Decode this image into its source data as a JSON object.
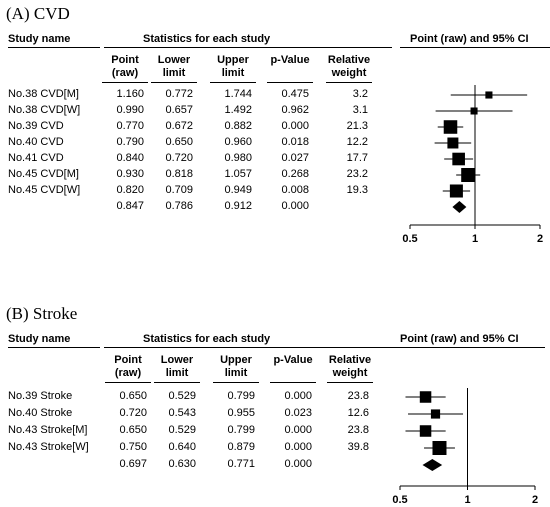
{
  "chart_data": [
    {
      "type": "forest",
      "title": "(A) CVD",
      "header_study": "Study name",
      "header_stats": "Statistics for each study",
      "header_plot": "Point (raw) and 95% CI",
      "columns": [
        "Point (raw)",
        "Lower limit",
        "Upper limit",
        "p-Value",
        "Relative weight"
      ],
      "rows": [
        {
          "study": "No.38 CVD[M]",
          "point": "1.160",
          "lower": "0.772",
          "upper": "1.744",
          "p": "0.475",
          "weight": "3.2"
        },
        {
          "study": "No.38 CVD[W]",
          "point": "0.990",
          "lower": "0.657",
          "upper": "1.492",
          "p": "0.962",
          "weight": "3.1"
        },
        {
          "study": "No.39 CVD",
          "point": "0.770",
          "lower": "0.672",
          "upper": "0.882",
          "p": "0.000",
          "weight": "21.3"
        },
        {
          "study": "No.40 CVD",
          "point": "0.790",
          "lower": "0.650",
          "upper": "0.960",
          "p": "0.018",
          "weight": "12.2"
        },
        {
          "study": "No.41 CVD",
          "point": "0.840",
          "lower": "0.720",
          "upper": "0.980",
          "p": "0.027",
          "weight": "17.7"
        },
        {
          "study": "No.45 CVD[M]",
          "point": "0.930",
          "lower": "0.818",
          "upper": "1.057",
          "p": "0.268",
          "weight": "23.2"
        },
        {
          "study": "No.45 CVD[W]",
          "point": "0.820",
          "lower": "0.709",
          "upper": "0.949",
          "p": "0.008",
          "weight": "19.3"
        }
      ],
      "summary": {
        "point": "0.847",
        "lower": "0.786",
        "upper": "0.912",
        "p": "0.000"
      },
      "x_ticks": [
        "0.5",
        "1",
        "2"
      ],
      "x_tick_values": [
        0.5,
        1,
        2
      ],
      "xlim": [
        0.5,
        2
      ],
      "x_scale": "log"
    },
    {
      "type": "forest",
      "title": "(B) Stroke",
      "header_study": "Study name",
      "header_stats": "Statistics for each study",
      "header_plot": "Point (raw) and 95% CI",
      "columns": [
        "Point (raw)",
        "Lower limit",
        "Upper limit",
        "p-Value",
        "Relative weight"
      ],
      "rows": [
        {
          "study": "No.39 Stroke",
          "point": "0.650",
          "lower": "0.529",
          "upper": "0.799",
          "p": "0.000",
          "weight": "23.8"
        },
        {
          "study": "No.40 Stroke",
          "point": "0.720",
          "lower": "0.543",
          "upper": "0.955",
          "p": "0.023",
          "weight": "12.6"
        },
        {
          "study": "No.43 Stroke[M]",
          "point": "0.650",
          "lower": "0.529",
          "upper": "0.799",
          "p": "0.000",
          "weight": "23.8"
        },
        {
          "study": "No.43 Stroke[W]",
          "point": "0.750",
          "lower": "0.640",
          "upper": "0.879",
          "p": "0.000",
          "weight": "39.8"
        }
      ],
      "summary": {
        "point": "0.697",
        "lower": "0.630",
        "upper": "0.771",
        "p": "0.000"
      },
      "x_ticks": [
        "0.5",
        "1",
        "2"
      ],
      "x_tick_values": [
        0.5,
        1,
        2
      ],
      "xlim": [
        0.5,
        2
      ],
      "x_scale": "log"
    }
  ]
}
